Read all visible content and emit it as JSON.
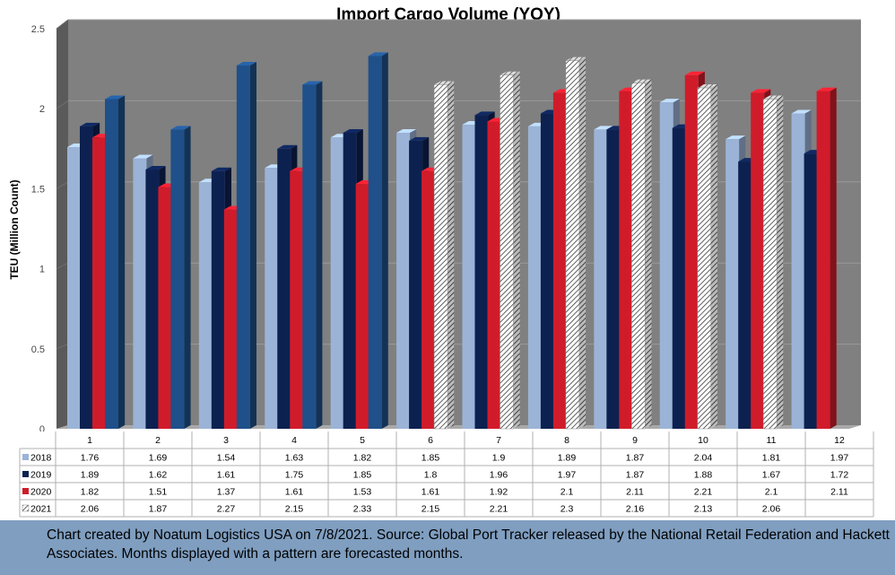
{
  "chart_data": {
    "type": "bar",
    "title": "Import Cargo Volume (YOY)",
    "ylabel": "TEU (Million Count)",
    "xlabel": "",
    "ylim": [
      0,
      2.5
    ],
    "yticks": [
      "0",
      "0.5",
      "1",
      "1.5",
      "2",
      "2.5"
    ],
    "categories": [
      "1",
      "2",
      "3",
      "4",
      "5",
      "6",
      "7",
      "8",
      "9",
      "10",
      "11",
      "12"
    ],
    "series": [
      {
        "name": "2018",
        "color": "#9bb3d6",
        "values": [
          1.76,
          1.69,
          1.54,
          1.63,
          1.82,
          1.85,
          1.9,
          1.89,
          1.87,
          2.04,
          1.81,
          1.97
        ],
        "labels": [
          "1.76",
          "1.69",
          "1.54",
          "1.63",
          "1.82",
          "1.85",
          "1.9",
          "1.89",
          "1.87",
          "2.04",
          "1.81",
          "1.97"
        ]
      },
      {
        "name": "2019",
        "color": "#0d2150",
        "values": [
          1.89,
          1.62,
          1.61,
          1.75,
          1.85,
          1.8,
          1.96,
          1.97,
          1.87,
          1.88,
          1.67,
          1.72
        ],
        "labels": [
          "1.89",
          "1.62",
          "1.61",
          "1.75",
          "1.85",
          "1.8",
          "1.96",
          "1.97",
          "1.87",
          "1.88",
          "1.67",
          "1.72"
        ]
      },
      {
        "name": "2020",
        "color": "#d01c2a",
        "values": [
          1.82,
          1.51,
          1.37,
          1.61,
          1.53,
          1.61,
          1.92,
          2.1,
          2.11,
          2.21,
          2.1,
          2.11
        ],
        "labels": [
          "1.82",
          "1.51",
          "1.37",
          "1.61",
          "1.53",
          "1.61",
          "1.92",
          "2.1",
          "2.11",
          "2.21",
          "2.1",
          "2.11"
        ]
      },
      {
        "name": "2021",
        "color": "#1f5089",
        "values": [
          2.06,
          1.87,
          2.27,
          2.15,
          2.33,
          2.15,
          2.21,
          2.3,
          2.16,
          2.13,
          2.06,
          null
        ],
        "labels": [
          "2.06",
          "1.87",
          "2.27",
          "2.15",
          "2.33",
          "2.15",
          "2.21",
          "2.3",
          "2.16",
          "2.13",
          "2.06",
          ""
        ],
        "forecast_from": "6"
      }
    ],
    "grid": true,
    "legend": "data-table"
  },
  "footer": {
    "caption": "Chart created by Noatum Logistics USA on 7/8/2021. Source: Global Port Tracker released by the National Retail Federation and Hackett Associates. Months displayed with a pattern are forecasted months."
  }
}
